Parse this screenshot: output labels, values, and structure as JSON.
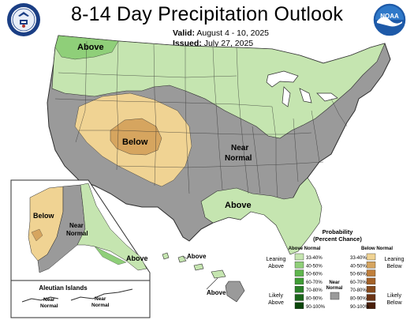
{
  "header": {
    "title": "8-14 Day Precipitation Outlook",
    "valid_label": "Valid:",
    "valid_value": "August 4 - 10, 2025",
    "issued_label": "Issued:",
    "issued_value": "July 27, 2025"
  },
  "logos": {
    "left_name": "commerce-seal",
    "right_name": "noaa-logo",
    "right_text": "NOAA"
  },
  "colors": {
    "above_33_40": "#c5e5b0",
    "above_40_50": "#8fcf79",
    "below_33_40": "#f0d393",
    "below_40_50": "#d6a55f",
    "near_normal": "#9a9a9a",
    "border": "#2d2d2d"
  },
  "map_labels": {
    "above_nw": "Above",
    "below": "Below",
    "near_normal_line1": "Near",
    "near_normal_line2": "Normal",
    "above_se": "Above",
    "ak_below": "Below",
    "ak_near1": "Near",
    "ak_near2": "Normal",
    "ak_above": "Above",
    "aleutian_title": "Aleutian Islands",
    "al_near1": "Near",
    "al_near2": "Normal",
    "al_near1b": "Near",
    "al_near2b": "Normal",
    "hi_above1": "Above",
    "hi_above2": "Above"
  },
  "legend": {
    "title_line1": "Probability",
    "title_line2": "(Percent Chance)",
    "above_header": "Above Normal",
    "below_header": "Below Normal",
    "leaning_above_1": "Leaning",
    "leaning_above_2": "Above",
    "likely_above_1": "Likely",
    "likely_above_2": "Above",
    "near_1": "Near",
    "near_2": "Normal",
    "leaning_below_1": "Leaning",
    "leaning_below_2": "Below",
    "likely_below_1": "Likely",
    "likely_below_2": "Below",
    "above_items": [
      {
        "label": "33-40%",
        "color": "#c5e5b0"
      },
      {
        "label": "40-50%",
        "color": "#8fcf79"
      },
      {
        "label": "50-60%",
        "color": "#5fb64d"
      },
      {
        "label": "60-70%",
        "color": "#3f9d35"
      },
      {
        "label": "70-80%",
        "color": "#2a8028"
      },
      {
        "label": "80-90%",
        "color": "#1a651a"
      },
      {
        "label": "90-100%",
        "color": "#0b460b"
      }
    ],
    "below_items": [
      {
        "label": "33-40%",
        "color": "#f0d393"
      },
      {
        "label": "40-50%",
        "color": "#d6a55f"
      },
      {
        "label": "50-60%",
        "color": "#c07f3c"
      },
      {
        "label": "60-70%",
        "color": "#a56228"
      },
      {
        "label": "70-80%",
        "color": "#874a1c"
      },
      {
        "label": "80-90%",
        "color": "#6b3414"
      },
      {
        "label": "90-100%",
        "color": "#4a1f0a"
      }
    ]
  }
}
